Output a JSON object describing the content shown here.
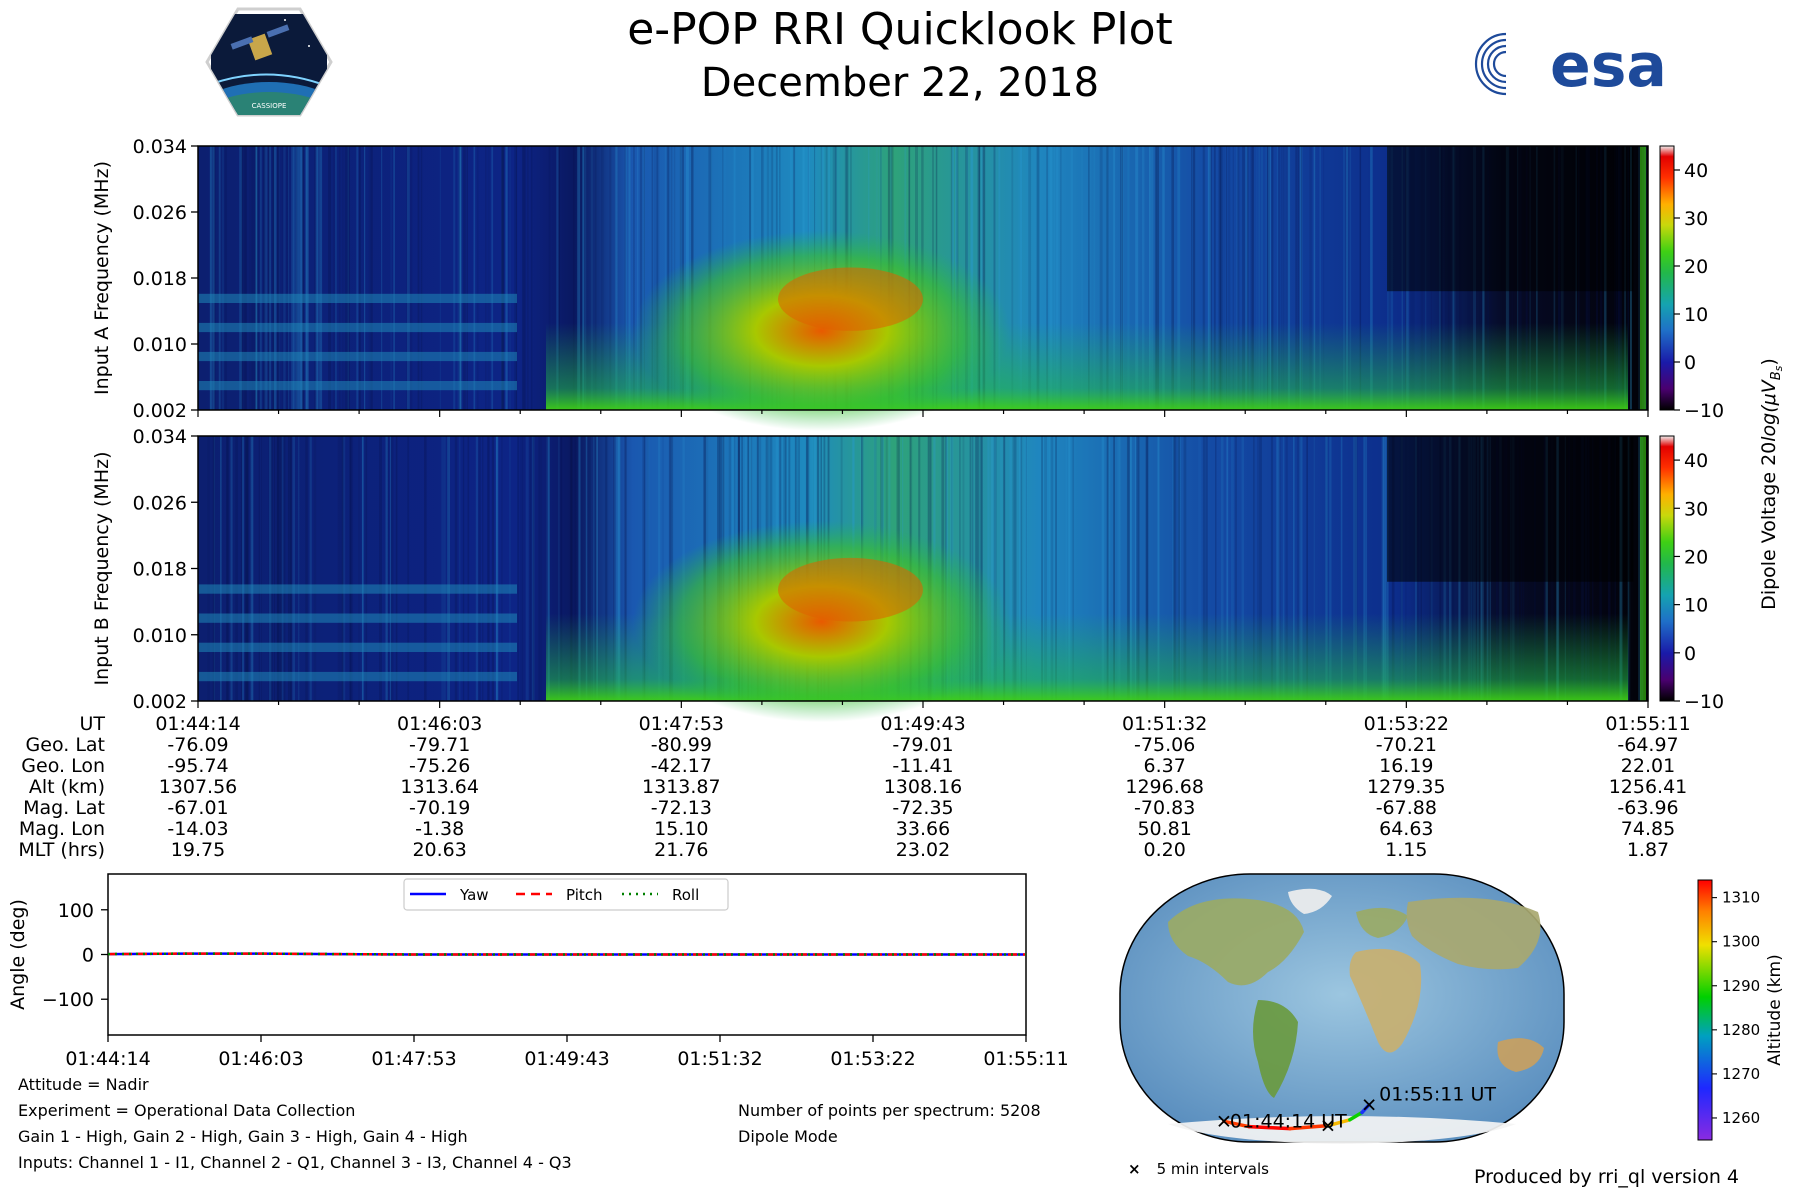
{
  "header": {
    "title": "e-POP RRI Quicklook Plot",
    "date": "December 22, 2018",
    "mission_logo": "CASSIOPE",
    "agency_logo": "esa"
  },
  "chart_data": [
    {
      "type": "heatmap",
      "name": "input-a-spectrogram",
      "ylabel": "Input A Frequency (MHz)",
      "yticks": [
        "0.002",
        "0.010",
        "0.018",
        "0.026",
        "0.034"
      ],
      "ylim": [
        0.002,
        0.034
      ],
      "colorbar_label_prefix": "Dipole Voltage 20",
      "colorbar_label_func": "log",
      "colorbar_label_arg": "(μV",
      "colorbar_label_sub": "B",
      "colorbar_label_end": "s",
      "colorbar_label_close": ")",
      "colorbar_ticks": [
        "−10",
        "0",
        "10",
        "20",
        "30",
        "40"
      ],
      "colorbar_range": [
        -10,
        45
      ]
    },
    {
      "type": "heatmap",
      "name": "input-b-spectrogram",
      "ylabel": "Input B Frequency (MHz)",
      "yticks": [
        "0.002",
        "0.010",
        "0.018",
        "0.026",
        "0.034"
      ],
      "ylim": [
        0.002,
        0.034
      ],
      "colorbar_ticks": [
        "−10",
        "0",
        "10",
        "20",
        "30",
        "40"
      ],
      "colorbar_range": [
        -10,
        45
      ]
    },
    {
      "type": "table",
      "name": "ephemeris-table",
      "row_labels": [
        "UT",
        "Geo. Lat",
        "Geo. Lon",
        "Alt (km)",
        "Mag. Lat",
        "Mag. Lon",
        "MLT (hrs)"
      ],
      "columns": [
        [
          "01:44:14",
          "-76.09",
          "-95.74",
          "1307.56",
          "-67.01",
          "-14.03",
          "19.75"
        ],
        [
          "01:46:03",
          "-79.71",
          "-75.26",
          "1313.64",
          "-70.19",
          "-1.38",
          "20.63"
        ],
        [
          "01:47:53",
          "-80.99",
          "-42.17",
          "1313.87",
          "-72.13",
          "15.10",
          "21.76"
        ],
        [
          "01:49:43",
          "-79.01",
          "-11.41",
          "1308.16",
          "-72.35",
          "33.66",
          "23.02"
        ],
        [
          "01:51:32",
          "-75.06",
          "6.37",
          "1296.68",
          "-70.83",
          "50.81",
          "0.20"
        ],
        [
          "01:53:22",
          "-70.21",
          "16.19",
          "1279.35",
          "-67.88",
          "64.63",
          "1.15"
        ],
        [
          "01:55:11",
          "-64.97",
          "22.01",
          "1256.41",
          "-63.96",
          "74.85",
          "1.87"
        ]
      ]
    },
    {
      "type": "line",
      "name": "attitude-plot",
      "ylabel": "Angle (deg)",
      "yticks": [
        "100",
        "0",
        "−100"
      ],
      "ytick_values": [
        100,
        0,
        -100
      ],
      "ylim": [
        -180,
        180
      ],
      "xticks": [
        "01:44:14",
        "01:46:03",
        "01:47:53",
        "01:49:43",
        "01:51:32",
        "01:53:22",
        "01:55:11"
      ],
      "xlim": [
        0,
        6
      ],
      "series": [
        {
          "name": "Yaw",
          "color": "#0000ff",
          "x": [
            0,
            0.5,
            1,
            1.5,
            2,
            3,
            4,
            5,
            6
          ],
          "values": [
            1,
            2,
            2,
            1,
            0,
            0,
            0,
            0,
            0
          ]
        },
        {
          "name": "Pitch",
          "color": "#ff0000",
          "x": [
            0,
            0.5,
            1,
            1.5,
            2,
            3,
            4,
            5,
            6
          ],
          "values": [
            1,
            2,
            2,
            1,
            0,
            0,
            0,
            0,
            0
          ]
        },
        {
          "name": "Roll",
          "color": "#008000",
          "x": [
            0,
            0.5,
            1,
            1.5,
            2,
            3,
            4,
            5,
            6
          ],
          "values": [
            1,
            2,
            2,
            1,
            0,
            0,
            0,
            0,
            0
          ]
        }
      ]
    },
    {
      "type": "scatter",
      "name": "ground-track-map",
      "track_lat": [
        -76.09,
        -79.71,
        -80.99,
        -79.01,
        -75.06,
        -70.21,
        -64.97
      ],
      "track_lon": [
        -95.74,
        -75.26,
        -42.17,
        -11.41,
        6.37,
        16.19,
        22.01
      ],
      "track_alt": [
        1307.56,
        1313.64,
        1313.87,
        1308.16,
        1296.68,
        1279.35,
        1256.41
      ],
      "start_label": "01:44:14 UT",
      "end_label": "01:55:11 UT",
      "colorbar_label": "Altitude (km)",
      "colorbar_ticks": [
        "1260",
        "1270",
        "1280",
        "1290",
        "1300",
        "1310"
      ],
      "colorbar_range": [
        1255,
        1314
      ],
      "legend": "5 min intervals"
    }
  ],
  "notes": {
    "attitude": "Attitude = Nadir",
    "experiment": "Experiment = Operational Data Collection",
    "gain": "Gain 1 - High, Gain 2 - High, Gain 3 - High, Gain 4 - High",
    "inputs": "Inputs: Channel 1 - I1, Channel 2 - Q1, Channel 3 - I3, Channel 4 - Q3",
    "points": "Number of points per spectrum: 5208",
    "mode": "Dipole Mode"
  },
  "footer": {
    "credit": "Produced by rri_ql version 4"
  }
}
